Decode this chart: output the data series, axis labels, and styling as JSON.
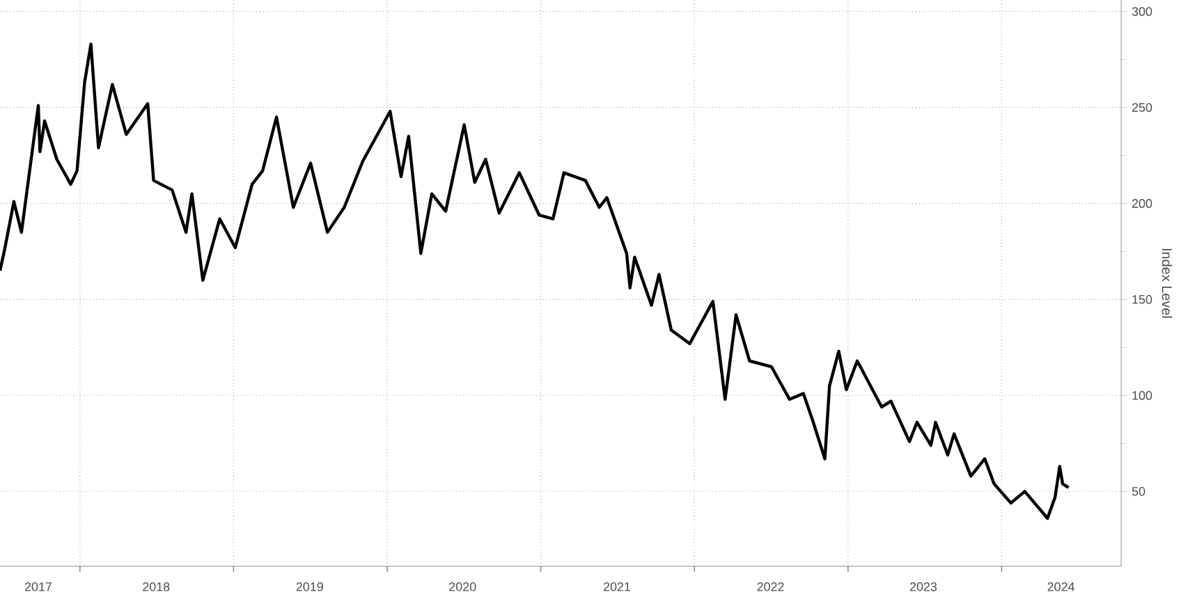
{
  "chart_data": {
    "type": "line",
    "ylabel": "Index Level",
    "x": [
      "2017-06-25",
      "2017-07-06",
      "2017-07-28",
      "2017-08-15",
      "2017-09-24",
      "2017-09-28",
      "2017-10-09",
      "2017-11-07",
      "2017-12-10",
      "2017-12-25",
      "2018-01-12",
      "2018-01-27",
      "2018-02-14",
      "2018-03-19",
      "2018-04-21",
      "2018-06-11",
      "2018-06-25",
      "2018-08-08",
      "2018-09-10",
      "2018-09-24",
      "2018-10-20",
      "2018-11-29",
      "2019-01-05",
      "2019-02-14",
      "2019-03-11",
      "2019-04-13",
      "2019-05-23",
      "2019-07-03",
      "2019-08-12",
      "2019-09-21",
      "2019-11-04",
      "2020-01-08",
      "2020-02-03",
      "2020-02-21",
      "2020-03-22",
      "2020-04-17",
      "2020-05-20",
      "2020-07-03",
      "2020-07-28",
      "2020-08-23",
      "2020-09-24",
      "2020-11-11",
      "2020-12-28",
      "2021-01-30",
      "2021-02-25",
      "2021-04-17",
      "2021-05-20",
      "2021-06-07",
      "2021-07-24",
      "2021-08-01",
      "2021-08-12",
      "2021-09-21",
      "2021-10-09",
      "2021-11-07",
      "2021-12-21",
      "2022-02-14",
      "2022-03-15",
      "2022-04-10",
      "2022-05-12",
      "2022-07-03",
      "2022-08-15",
      "2022-09-17",
      "2022-10-09",
      "2022-11-07",
      "2022-11-18",
      "2022-12-10",
      "2022-12-28",
      "2023-01-23",
      "2023-03-22",
      "2023-04-13",
      "2023-05-27",
      "2023-06-14",
      "2023-07-17",
      "2023-07-28",
      "2023-08-26",
      "2023-09-10",
      "2023-10-20",
      "2023-11-22",
      "2023-12-14",
      "2024-01-23",
      "2024-02-25",
      "2024-04-20",
      "2024-05-08",
      "2024-05-19",
      "2024-05-26",
      "2024-06-09"
    ],
    "series": [
      {
        "color": "#000000",
        "values": [
          165,
          176,
          201,
          185,
          251,
          227,
          243,
          223,
          210,
          217,
          263,
          283,
          229,
          262,
          236,
          252,
          212,
          207,
          185,
          205,
          160,
          192,
          177,
          210,
          217,
          245,
          198,
          221,
          185,
          198,
          222,
          248,
          214,
          235,
          174,
          205,
          196,
          241,
          211,
          223,
          195,
          216,
          194,
          192,
          216,
          212,
          198,
          203,
          174,
          156,
          172,
          147,
          163,
          134,
          127,
          149,
          98,
          142,
          118,
          115,
          98,
          101,
          87,
          67,
          105,
          123,
          103,
          118,
          94,
          97,
          76,
          86,
          74,
          86,
          69,
          80,
          58,
          67,
          54,
          44,
          50,
          36,
          47,
          63,
          54,
          52
        ]
      }
    ],
    "xlim": [
      "2017-06-25",
      "2024-10-12"
    ],
    "ylim": [
      11,
      306
    ],
    "xticks": [
      {
        "value": "2018-01-01",
        "label": null
      },
      {
        "value": "2019-01-01",
        "label": null
      },
      {
        "value": "2020-01-01",
        "label": null
      },
      {
        "value": "2021-01-01",
        "label": null
      },
      {
        "value": "2022-01-01",
        "label": null
      },
      {
        "value": "2023-01-01",
        "label": null
      },
      {
        "value": "2024-01-01",
        "label": null
      },
      {
        "value": "2017-09-24",
        "label": "2017"
      },
      {
        "value": "2018-07-01",
        "label": "2018"
      },
      {
        "value": "2019-07-01",
        "label": "2019"
      },
      {
        "value": "2020-06-29",
        "label": "2020"
      },
      {
        "value": "2021-07-01",
        "label": "2021"
      },
      {
        "value": "2022-07-01",
        "label": "2022"
      },
      {
        "value": "2023-06-29",
        "label": "2023"
      },
      {
        "value": "2024-05-22",
        "label": "2024"
      }
    ],
    "yticks": [
      50,
      100,
      150,
      200,
      250,
      300
    ],
    "grid": true,
    "marker": "none",
    "line_style": "solid"
  }
}
